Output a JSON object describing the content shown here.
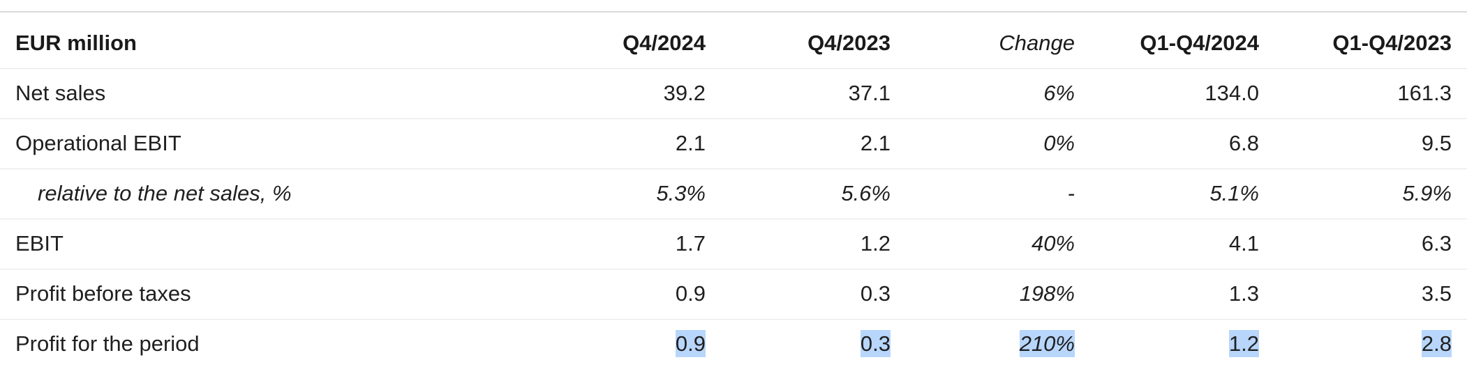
{
  "table": {
    "headers": [
      "EUR million",
      "Q4/2024",
      "Q4/2023",
      "Change",
      "Q1-Q4/2024",
      "Q1-Q4/2023"
    ],
    "rows": [
      {
        "label": "Net sales",
        "values": [
          "39.2",
          "37.1",
          "6%",
          "134.0",
          "161.3"
        ]
      },
      {
        "label": "Operational EBIT",
        "values": [
          "2.1",
          "2.1",
          "0%",
          "6.8",
          "9.5"
        ]
      },
      {
        "label": "relative to the net sales, %",
        "values": [
          "5.3%",
          "5.6%",
          "-",
          "5.1%",
          "5.9%"
        ]
      },
      {
        "label": "EBIT",
        "values": [
          "1.7",
          "1.2",
          "40%",
          "4.1",
          "6.3"
        ]
      },
      {
        "label": "Profit before taxes",
        "values": [
          "0.9",
          "0.3",
          "198%",
          "1.3",
          "3.5"
        ]
      },
      {
        "label": "Profit for the period",
        "values": [
          "0.9",
          "0.3",
          "210%",
          "1.2",
          "2.8"
        ]
      }
    ]
  },
  "colors": {
    "selection_highlight": "#b8d6fb",
    "row_divider": "#e6e6e6",
    "text": "#1f1f1f"
  }
}
